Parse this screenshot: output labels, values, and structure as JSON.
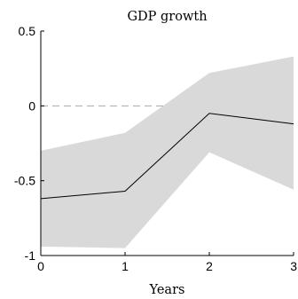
{
  "chart_data": {
    "type": "area",
    "title": "GDP growth",
    "xlabel": "Years",
    "ylabel": "",
    "xlim": [
      0,
      3
    ],
    "ylim": [
      -1,
      0.5
    ],
    "x": [
      0,
      1,
      2,
      3
    ],
    "x_ticks": [
      0,
      1,
      2,
      3
    ],
    "x_tick_labels": [
      "0",
      "1",
      "2",
      "3"
    ],
    "y_ticks": [
      0.5,
      0,
      -0.5,
      -1
    ],
    "y_tick_labels": [
      "0.5",
      "0",
      "-0.5",
      "-1"
    ],
    "series": [
      {
        "values": [
          -0.62,
          -0.57,
          -0.05,
          -0.12
        ]
      }
    ],
    "band": {
      "upper": [
        -0.3,
        -0.18,
        0.22,
        0.33
      ],
      "lower": [
        -0.94,
        -0.95,
        -0.31,
        -0.56
      ]
    },
    "reference_line": {
      "y": 0,
      "x_end": 1.5,
      "style": "dashed"
    },
    "grid": false,
    "legend": "none",
    "colors": {
      "band": "#d9d9d9",
      "line": "#000000",
      "reference": "#aaaaaa",
      "axis": "#000000"
    }
  }
}
